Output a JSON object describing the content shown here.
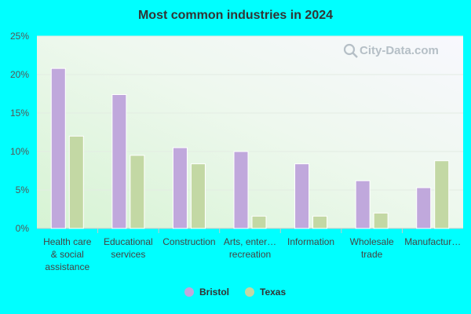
{
  "chart_data": {
    "type": "bar",
    "title": "Most common industries in 2024",
    "categories": [
      [
        "Health care",
        "& social",
        "assistance"
      ],
      [
        "Educational",
        "services"
      ],
      [
        "Construction"
      ],
      [
        "Arts, enter…",
        "recreation"
      ],
      [
        "Information"
      ],
      [
        "Wholesale",
        "trade"
      ],
      [
        "Manufactur…"
      ]
    ],
    "series": [
      {
        "name": "Bristol",
        "color": "#c0a8dc",
        "values": [
          20.8,
          17.4,
          10.5,
          10.0,
          8.4,
          6.2,
          5.3
        ]
      },
      {
        "name": "Texas",
        "color": "#c3d8a4",
        "values": [
          12.0,
          9.5,
          8.4,
          1.6,
          1.6,
          2.0,
          8.8
        ]
      }
    ],
    "ylim": [
      0,
      25
    ],
    "yticks": [
      "0%",
      "5%",
      "10%",
      "15%",
      "20%",
      "25%"
    ],
    "ytick_values": [
      0,
      5,
      10,
      15,
      20,
      25
    ],
    "xlabel": "",
    "ylabel": "",
    "grid": true,
    "legend": "bottom"
  },
  "watermark": {
    "text": "City-Data.com",
    "icon": "search-icon"
  }
}
